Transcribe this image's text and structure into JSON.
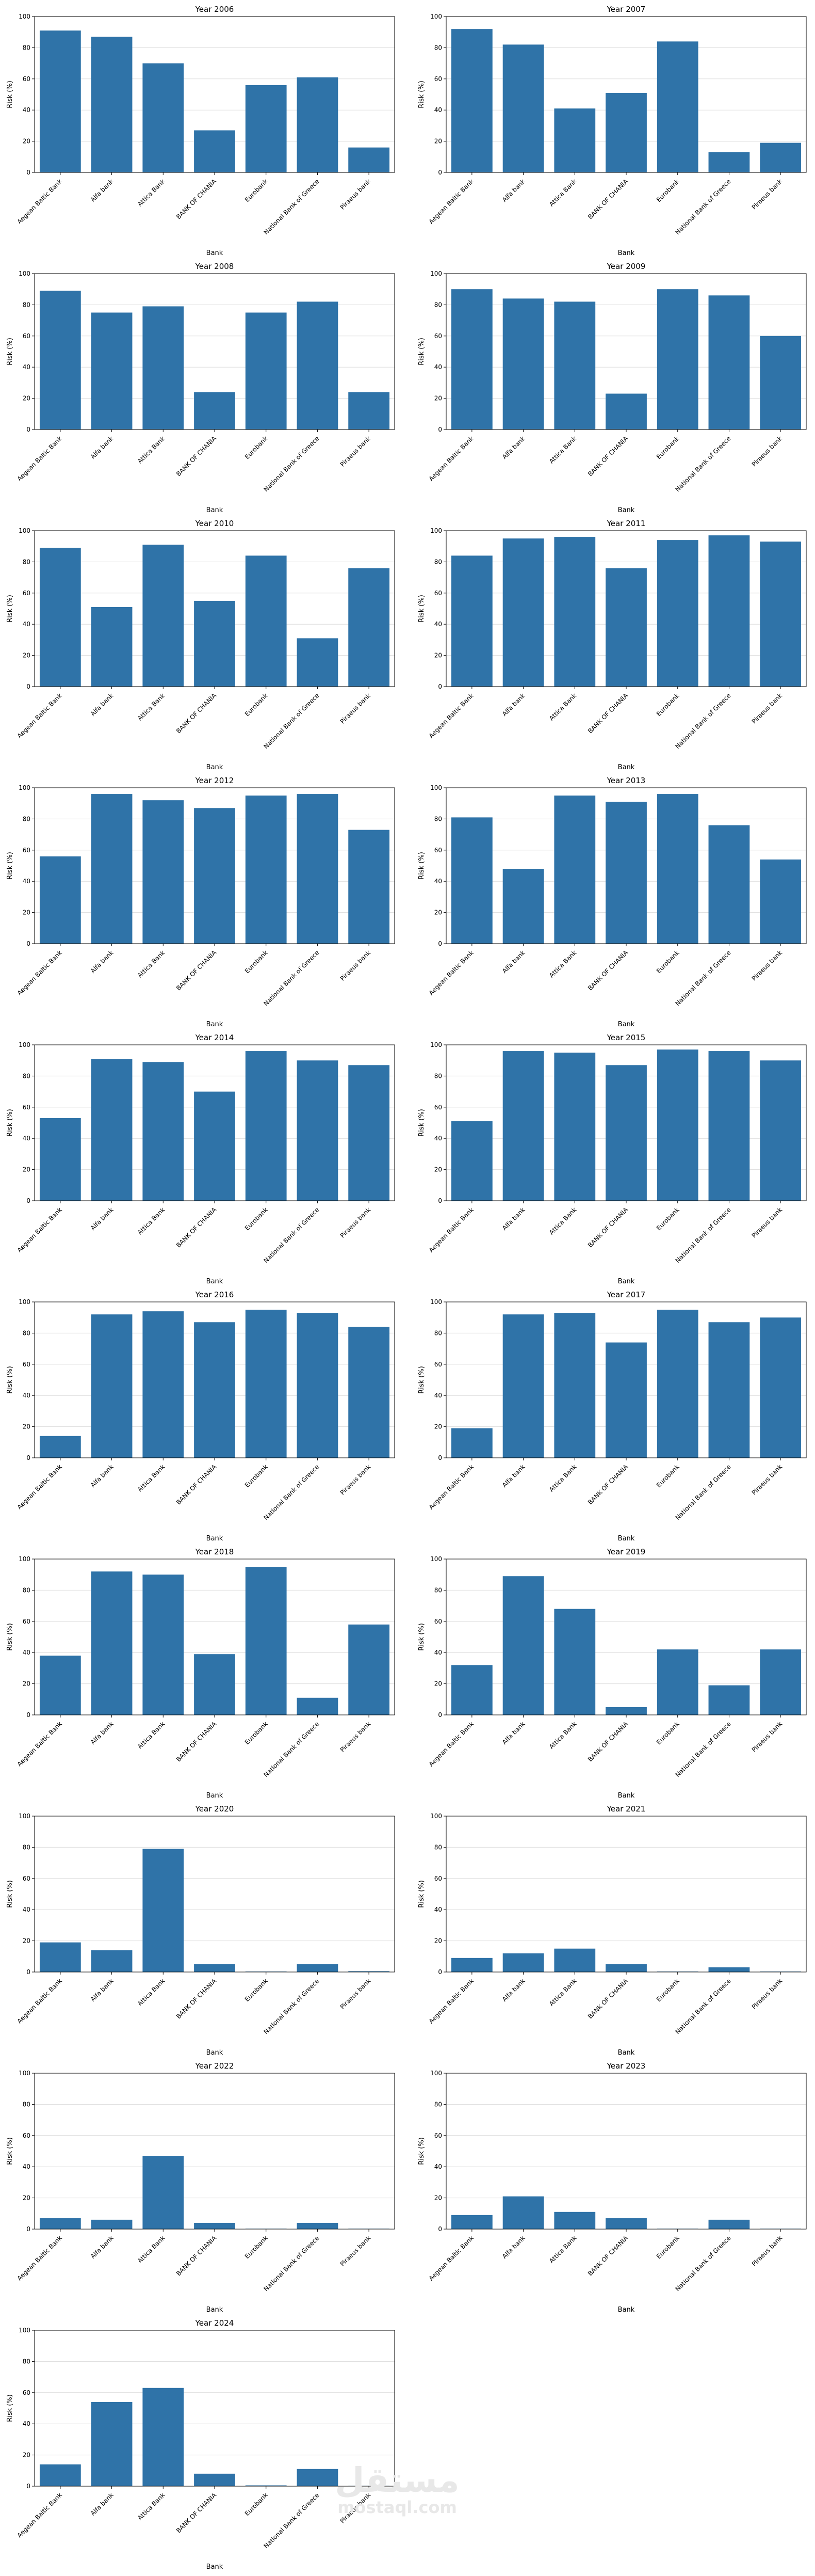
{
  "colors": {
    "bar": "#2f73a8",
    "grid": "#dcdcdc",
    "axis": "#000000"
  },
  "watermark": {
    "script_text": "مستقل",
    "latin_text": "mostaql.com"
  },
  "chart_data": [
    {
      "type": "bar",
      "title": "Year 2006",
      "xlabel": "Bank",
      "ylabel": "Risk (%)",
      "ylim": [
        0,
        100
      ],
      "yticks": [
        0,
        20,
        40,
        60,
        80,
        100
      ],
      "grid": "y",
      "categories": [
        "Aegean Baltic Bank",
        "Alfa bank",
        "Attica Bank",
        "BANK OF CHANIA",
        "Eurobank",
        "National Bank of Greece",
        "Piraeus bank"
      ],
      "values": [
        91,
        87,
        70,
        27,
        56,
        61,
        16
      ]
    },
    {
      "type": "bar",
      "title": "Year 2007",
      "xlabel": "Bank",
      "ylabel": "Risk (%)",
      "ylim": [
        0,
        100
      ],
      "yticks": [
        0,
        20,
        40,
        60,
        80,
        100
      ],
      "grid": "y",
      "categories": [
        "Aegean Baltic Bank",
        "Alfa bank",
        "Attica Bank",
        "BANK OF CHANIA",
        "Eurobank",
        "National Bank of Greece",
        "Piraeus bank"
      ],
      "values": [
        92,
        82,
        41,
        51,
        84,
        13,
        19
      ]
    },
    {
      "type": "bar",
      "title": "Year 2008",
      "xlabel": "Bank",
      "ylabel": "Risk (%)",
      "ylim": [
        0,
        100
      ],
      "yticks": [
        0,
        20,
        40,
        60,
        80,
        100
      ],
      "grid": "y",
      "categories": [
        "Aegean Baltic Bank",
        "Alfa bank",
        "Attica Bank",
        "BANK OF CHANIA",
        "Eurobank",
        "National Bank of Greece",
        "Piraeus bank"
      ],
      "values": [
        89,
        75,
        79,
        24,
        75,
        82,
        24
      ]
    },
    {
      "type": "bar",
      "title": "Year 2009",
      "xlabel": "Bank",
      "ylabel": "Risk (%)",
      "ylim": [
        0,
        100
      ],
      "yticks": [
        0,
        20,
        40,
        60,
        80,
        100
      ],
      "grid": "y",
      "categories": [
        "Aegean Baltic Bank",
        "Alfa bank",
        "Attica Bank",
        "BANK OF CHANIA",
        "Eurobank",
        "National Bank of Greece",
        "Piraeus bank"
      ],
      "values": [
        90,
        84,
        82,
        23,
        90,
        86,
        60
      ]
    },
    {
      "type": "bar",
      "title": "Year 2010",
      "xlabel": "Bank",
      "ylabel": "Risk (%)",
      "ylim": [
        0,
        100
      ],
      "yticks": [
        0,
        20,
        40,
        60,
        80,
        100
      ],
      "grid": "y",
      "categories": [
        "Aegean Baltic Bank",
        "Alfa bank",
        "Attica Bank",
        "BANK OF CHANIA",
        "Eurobank",
        "National Bank of Greece",
        "Piraeus bank"
      ],
      "values": [
        89,
        51,
        91,
        55,
        84,
        31,
        76
      ]
    },
    {
      "type": "bar",
      "title": "Year 2011",
      "xlabel": "Bank",
      "ylabel": "Risk (%)",
      "ylim": [
        0,
        100
      ],
      "yticks": [
        0,
        20,
        40,
        60,
        80,
        100
      ],
      "grid": "y",
      "categories": [
        "Aegean Baltic Bank",
        "Alfa bank",
        "Attica Bank",
        "BANK OF CHANIA",
        "Eurobank",
        "National Bank of Greece",
        "Piraeus bank"
      ],
      "values": [
        84,
        95,
        96,
        76,
        94,
        97,
        93
      ]
    },
    {
      "type": "bar",
      "title": "Year 2012",
      "xlabel": "Bank",
      "ylabel": "Risk (%)",
      "ylim": [
        0,
        100
      ],
      "yticks": [
        0,
        20,
        40,
        60,
        80,
        100
      ],
      "grid": "y",
      "categories": [
        "Aegean Baltic Bank",
        "Alfa bank",
        "Attica Bank",
        "BANK OF CHANIA",
        "Eurobank",
        "National Bank of Greece",
        "Piraeus bank"
      ],
      "values": [
        56,
        96,
        92,
        87,
        95,
        96,
        73
      ]
    },
    {
      "type": "bar",
      "title": "Year 2013",
      "xlabel": "Bank",
      "ylabel": "Risk (%)",
      "ylim": [
        0,
        100
      ],
      "yticks": [
        0,
        20,
        40,
        60,
        80,
        100
      ],
      "grid": "y",
      "categories": [
        "Aegean Baltic Bank",
        "Alfa bank",
        "Attica Bank",
        "BANK OF CHANIA",
        "Eurobank",
        "National Bank of Greece",
        "Piraeus bank"
      ],
      "values": [
        81,
        48,
        95,
        91,
        96,
        76,
        54
      ]
    },
    {
      "type": "bar",
      "title": "Year 2014",
      "xlabel": "Bank",
      "ylabel": "Risk (%)",
      "ylim": [
        0,
        100
      ],
      "yticks": [
        0,
        20,
        40,
        60,
        80,
        100
      ],
      "grid": "y",
      "categories": [
        "Aegean Baltic Bank",
        "Alfa bank",
        "Attica Bank",
        "BANK OF CHANIA",
        "Eurobank",
        "National Bank of Greece",
        "Piraeus bank"
      ],
      "values": [
        53,
        91,
        89,
        70,
        96,
        90,
        87
      ]
    },
    {
      "type": "bar",
      "title": "Year 2015",
      "xlabel": "Bank",
      "ylabel": "Risk (%)",
      "ylim": [
        0,
        100
      ],
      "yticks": [
        0,
        20,
        40,
        60,
        80,
        100
      ],
      "grid": "y",
      "categories": [
        "Aegean Baltic Bank",
        "Alfa bank",
        "Attica Bank",
        "BANK OF CHANIA",
        "Eurobank",
        "National Bank of Greece",
        "Piraeus bank"
      ],
      "values": [
        51,
        96,
        95,
        87,
        97,
        96,
        90
      ]
    },
    {
      "type": "bar",
      "title": "Year 2016",
      "xlabel": "Bank",
      "ylabel": "Risk (%)",
      "ylim": [
        0,
        100
      ],
      "yticks": [
        0,
        20,
        40,
        60,
        80,
        100
      ],
      "grid": "y",
      "categories": [
        "Aegean Baltic Bank",
        "Alfa bank",
        "Attica Bank",
        "BANK OF CHANIA",
        "Eurobank",
        "National Bank of Greece",
        "Piraeus bank"
      ],
      "values": [
        14,
        92,
        94,
        87,
        95,
        93,
        84
      ]
    },
    {
      "type": "bar",
      "title": "Year 2017",
      "xlabel": "Bank",
      "ylabel": "Risk (%)",
      "ylim": [
        0,
        100
      ],
      "yticks": [
        0,
        20,
        40,
        60,
        80,
        100
      ],
      "grid": "y",
      "categories": [
        "Aegean Baltic Bank",
        "Alfa bank",
        "Attica Bank",
        "BANK OF CHANIA",
        "Eurobank",
        "National Bank of Greece",
        "Piraeus bank"
      ],
      "values": [
        19,
        92,
        93,
        74,
        95,
        87,
        90
      ]
    },
    {
      "type": "bar",
      "title": "Year 2018",
      "xlabel": "Bank",
      "ylabel": "Risk (%)",
      "ylim": [
        0,
        100
      ],
      "yticks": [
        0,
        20,
        40,
        60,
        80,
        100
      ],
      "grid": "y",
      "categories": [
        "Aegean Baltic Bank",
        "Alfa bank",
        "Attica Bank",
        "BANK OF CHANIA",
        "Eurobank",
        "National Bank of Greece",
        "Piraeus bank"
      ],
      "values": [
        38,
        92,
        90,
        39,
        95,
        11,
        58
      ]
    },
    {
      "type": "bar",
      "title": "Year 2019",
      "xlabel": "Bank",
      "ylabel": "Risk (%)",
      "ylim": [
        0,
        100
      ],
      "yticks": [
        0,
        20,
        40,
        60,
        80,
        100
      ],
      "grid": "y",
      "categories": [
        "Aegean Baltic Bank",
        "Alfa bank",
        "Attica Bank",
        "BANK OF CHANIA",
        "Eurobank",
        "National Bank of Greece",
        "Piraeus bank"
      ],
      "values": [
        32,
        89,
        68,
        5,
        42,
        19,
        42
      ]
    },
    {
      "type": "bar",
      "title": "Year 2020",
      "xlabel": "Bank",
      "ylabel": "Risk (%)",
      "ylim": [
        0,
        100
      ],
      "yticks": [
        0,
        20,
        40,
        60,
        80,
        100
      ],
      "grid": "y",
      "categories": [
        "Aegean Baltic Bank",
        "Alfa bank",
        "Attica Bank",
        "BANK OF CHANIA",
        "Eurobank",
        "National Bank of Greece",
        "Piraeus bank"
      ],
      "values": [
        19,
        14,
        79,
        5,
        0.3,
        5,
        0.5
      ]
    },
    {
      "type": "bar",
      "title": "Year 2021",
      "xlabel": "Bank",
      "ylabel": "Risk (%)",
      "ylim": [
        0,
        100
      ],
      "yticks": [
        0,
        20,
        40,
        60,
        80,
        100
      ],
      "grid": "y",
      "categories": [
        "Aegean Baltic Bank",
        "Alfa bank",
        "Attica Bank",
        "BANK OF CHANIA",
        "Eurobank",
        "National Bank of Greece",
        "Piraeus bank"
      ],
      "values": [
        9,
        12,
        15,
        5,
        0.3,
        3,
        0.3
      ]
    },
    {
      "type": "bar",
      "title": "Year 2022",
      "xlabel": "Bank",
      "ylabel": "Risk (%)",
      "ylim": [
        0,
        100
      ],
      "yticks": [
        0,
        20,
        40,
        60,
        80,
        100
      ],
      "grid": "y",
      "categories": [
        "Aegean Baltic Bank",
        "Alfa bank",
        "Attica Bank",
        "BANK OF CHANIA",
        "Eurobank",
        "National Bank of Greece",
        "Piraeus bank"
      ],
      "values": [
        7,
        6,
        47,
        4,
        0.3,
        4,
        0.3
      ]
    },
    {
      "type": "bar",
      "title": "Year 2023",
      "xlabel": "Bank",
      "ylabel": "Risk (%)",
      "ylim": [
        0,
        100
      ],
      "yticks": [
        0,
        20,
        40,
        60,
        80,
        100
      ],
      "grid": "y",
      "categories": [
        "Aegean Baltic Bank",
        "Alfa bank",
        "Attica Bank",
        "BANK OF CHANIA",
        "Eurobank",
        "National Bank of Greece",
        "Piraeus bank"
      ],
      "values": [
        9,
        21,
        11,
        7,
        0.3,
        6,
        0.3
      ]
    },
    {
      "type": "bar",
      "title": "Year 2024",
      "xlabel": "Bank",
      "ylabel": "Risk (%)",
      "ylim": [
        0,
        100
      ],
      "yticks": [
        0,
        20,
        40,
        60,
        80,
        100
      ],
      "grid": "y",
      "categories": [
        "Aegean Baltic Bank",
        "Alfa bank",
        "Attica Bank",
        "BANK OF CHANIA",
        "Eurobank",
        "National Bank of Greece",
        "Piraeus bank"
      ],
      "values": [
        14,
        54,
        63,
        8,
        0.5,
        11,
        0.3
      ]
    }
  ]
}
